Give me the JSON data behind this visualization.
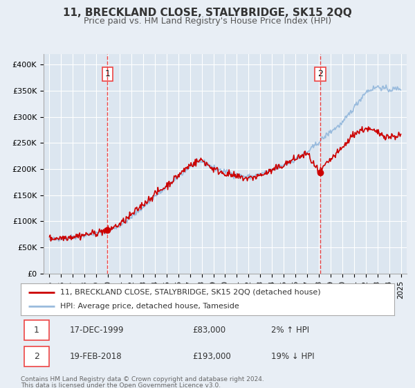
{
  "title": "11, BRECKLAND CLOSE, STALYBRIDGE, SK15 2QQ",
  "subtitle": "Price paid vs. HM Land Registry's House Price Index (HPI)",
  "bg_color": "#e8eef5",
  "plot_bg_color": "#dce6f0",
  "grid_color": "#ffffff",
  "red_line_color": "#cc0000",
  "blue_line_color": "#99bbdd",
  "marker1_date": 1999.96,
  "marker1_value": 83000,
  "marker2_date": 2018.13,
  "marker2_value": 193000,
  "vline_color": "#ee4444",
  "legend_entry1": "11, BRECKLAND CLOSE, STALYBRIDGE, SK15 2QQ (detached house)",
  "legend_entry2": "HPI: Average price, detached house, Tameside",
  "table_row1": [
    "1",
    "17-DEC-1999",
    "£83,000",
    "2% ↑ HPI"
  ],
  "table_row2": [
    "2",
    "19-FEB-2018",
    "£193,000",
    "19% ↓ HPI"
  ],
  "footer1": "Contains HM Land Registry data © Crown copyright and database right 2024.",
  "footer2": "This data is licensed under the Open Government Licence v3.0.",
  "ylim": [
    0,
    420000
  ],
  "xlim_start": 1994.5,
  "xlim_end": 2025.5,
  "yticks": [
    0,
    50000,
    100000,
    150000,
    200000,
    250000,
    300000,
    350000,
    400000
  ],
  "ytick_labels": [
    "£0",
    "£50K",
    "£100K",
    "£150K",
    "£200K",
    "£250K",
    "£300K",
    "£350K",
    "£400K"
  ],
  "xticks": [
    1995,
    1996,
    1997,
    1998,
    1999,
    2000,
    2001,
    2002,
    2003,
    2004,
    2005,
    2006,
    2007,
    2008,
    2009,
    2010,
    2011,
    2012,
    2013,
    2014,
    2015,
    2016,
    2017,
    2018,
    2019,
    2020,
    2021,
    2022,
    2023,
    2024,
    2025
  ],
  "hpi_base_years": [
    1995,
    1996,
    1997,
    1998,
    1999,
    2000,
    2001,
    2002,
    2003,
    2004,
    2005,
    2006,
    2007,
    2008,
    2009,
    2010,
    2011,
    2012,
    2013,
    2014,
    2015,
    2016,
    2017,
    2018,
    2019,
    2020,
    2021,
    2022,
    2023,
    2024,
    2025
  ],
  "hpi_base_vals": [
    65000,
    67500,
    70000,
    73000,
    77000,
    82000,
    92000,
    108000,
    128000,
    148000,
    165000,
    185000,
    205000,
    215000,
    203000,
    195000,
    188000,
    185000,
    190000,
    198000,
    208000,
    218000,
    232000,
    252000,
    272000,
    288000,
    318000,
    348000,
    358000,
    352000,
    355000
  ],
  "prop_base_years": [
    1995,
    1996,
    1997,
    1998,
    1999,
    2000,
    2001,
    2002,
    2003,
    2004,
    2005,
    2006,
    2007,
    2008,
    2009,
    2010,
    2011,
    2012,
    2013,
    2014,
    2015,
    2016,
    2017,
    2018,
    2019,
    2020,
    2021,
    2022,
    2023,
    2024,
    2025
  ],
  "prop_base_vals": [
    67000,
    68500,
    71000,
    74000,
    78000,
    84000,
    94000,
    112000,
    133000,
    152000,
    168000,
    188000,
    208000,
    218000,
    200000,
    192000,
    185000,
    182000,
    188000,
    197000,
    208000,
    220000,
    230000,
    193000,
    218000,
    240000,
    268000,
    278000,
    270000,
    262000,
    265000
  ]
}
